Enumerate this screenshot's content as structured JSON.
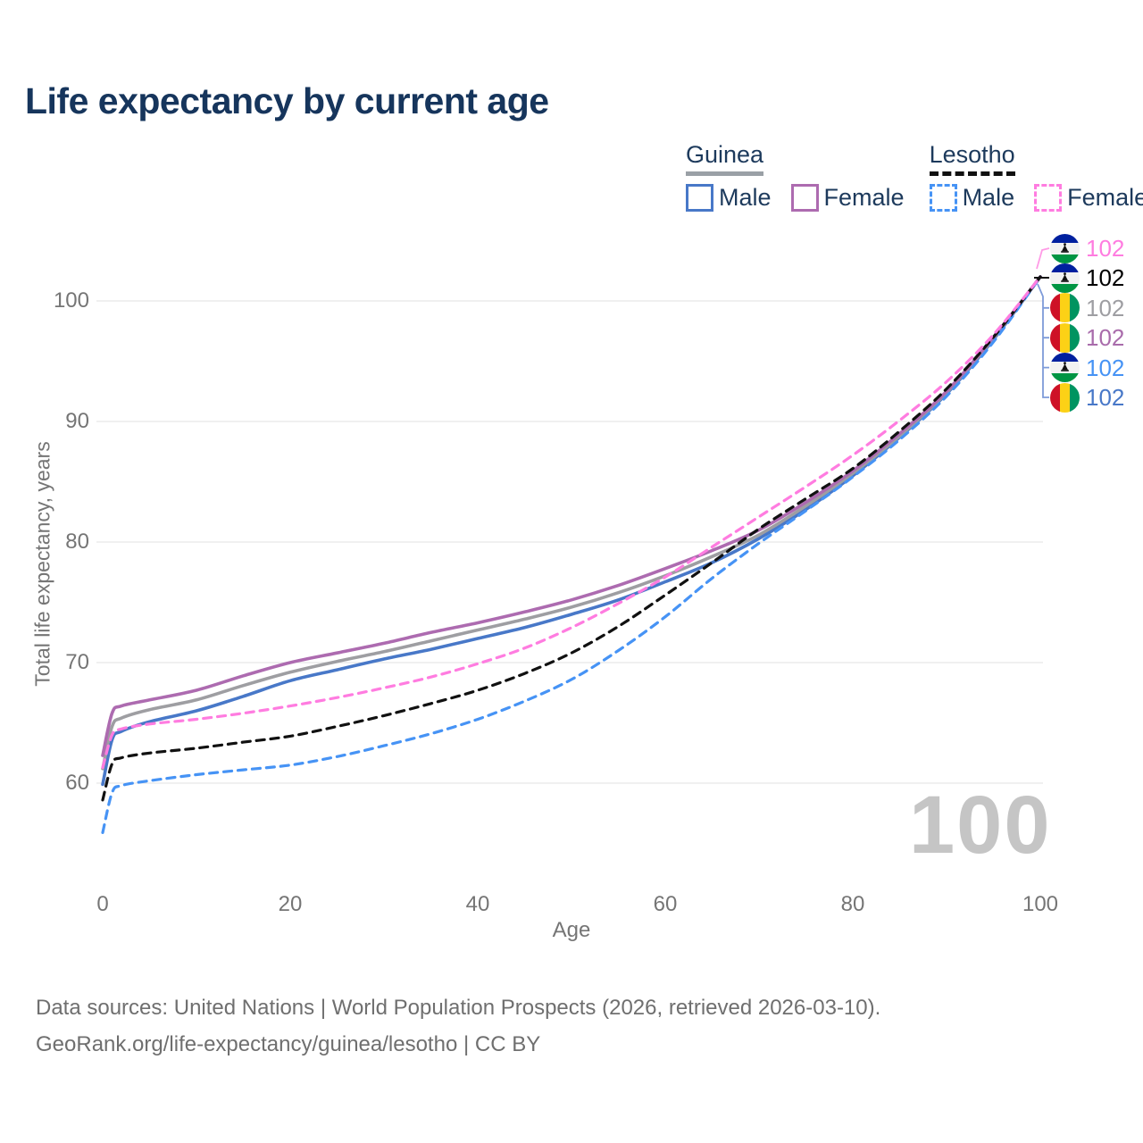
{
  "title": "Life expectancy by current age",
  "legend": {
    "groups": [
      {
        "name": "Guinea",
        "underline_style": "solid",
        "underline_color": "#9aa0a6",
        "items": [
          {
            "label": "Male",
            "color": "#4878c8",
            "dash": false
          },
          {
            "label": "Female",
            "color": "#ad6bb0",
            "dash": false
          }
        ]
      },
      {
        "name": "Lesotho",
        "underline_style": "dashed",
        "underline_color": "#111111",
        "items": [
          {
            "label": "Male",
            "color": "#4693f5",
            "dash": true
          },
          {
            "label": "Female",
            "color": "#ff7ce0",
            "dash": true
          }
        ]
      }
    ]
  },
  "chart_data": {
    "type": "line",
    "title": "Life expectancy by current age",
    "xlabel": "Age",
    "ylabel": "Total life expectancy, years",
    "xticks": [
      0,
      20,
      40,
      60,
      80,
      100
    ],
    "yticks": [
      60,
      70,
      80,
      90,
      100
    ],
    "xlim": [
      0,
      100
    ],
    "ylim": [
      55,
      104
    ],
    "grid": "horizontal-only",
    "legend_position": "top-right",
    "x": [
      0,
      1,
      2,
      5,
      10,
      15,
      20,
      25,
      30,
      35,
      40,
      45,
      50,
      55,
      60,
      65,
      70,
      75,
      80,
      85,
      90,
      95,
      100
    ],
    "series": [
      {
        "name": "Guinea Male",
        "country": "Guinea",
        "sex": "male",
        "color": "#4878c8",
        "dash": false,
        "values": [
          59.9,
          63.6,
          64.3,
          65.1,
          66.0,
          67.2,
          68.5,
          69.4,
          70.3,
          71.1,
          72.0,
          72.9,
          74.0,
          75.2,
          76.7,
          78.3,
          80.3,
          82.7,
          85.5,
          88.7,
          92.3,
          96.8,
          102
        ]
      },
      {
        "name": "Guinea Total",
        "country": "Guinea",
        "sex": "total",
        "color": "#9e9ea2",
        "dash": false,
        "values": [
          61.2,
          64.7,
          65.4,
          66.1,
          66.9,
          68.1,
          69.2,
          70.1,
          70.9,
          71.8,
          72.7,
          73.6,
          74.6,
          75.8,
          77.2,
          78.8,
          80.6,
          83.0,
          85.7,
          88.8,
          92.4,
          96.9,
          102
        ]
      },
      {
        "name": "Guinea Female",
        "country": "Guinea",
        "sex": "female",
        "color": "#ad6bb0",
        "dash": false,
        "values": [
          62.3,
          65.8,
          66.4,
          66.9,
          67.7,
          68.9,
          70.0,
          70.8,
          71.6,
          72.5,
          73.3,
          74.2,
          75.2,
          76.4,
          77.8,
          79.3,
          81.0,
          83.3,
          85.9,
          89.0,
          92.5,
          97.0,
          102
        ]
      },
      {
        "name": "Lesotho Male",
        "country": "Lesotho",
        "sex": "male",
        "color": "#4693f5",
        "dash": true,
        "values": [
          55.9,
          59.2,
          59.8,
          60.2,
          60.7,
          61.1,
          61.5,
          62.2,
          63.1,
          64.1,
          65.3,
          66.8,
          68.6,
          71.0,
          73.8,
          77.0,
          79.9,
          82.6,
          85.4,
          88.5,
          92.1,
          96.6,
          102
        ]
      },
      {
        "name": "Lesotho Total",
        "country": "Lesotho",
        "sex": "total",
        "color": "#111111",
        "dash": true,
        "values": [
          58.6,
          61.6,
          62.1,
          62.5,
          62.9,
          63.4,
          63.9,
          64.7,
          65.6,
          66.6,
          67.7,
          69.1,
          70.8,
          73.0,
          75.6,
          78.3,
          81.1,
          83.6,
          86.1,
          89.2,
          92.7,
          97.0,
          102
        ]
      },
      {
        "name": "Lesotho Female",
        "country": "Lesotho",
        "sex": "female",
        "color": "#ff7ce0",
        "dash": true,
        "values": [
          61.3,
          64.0,
          64.5,
          64.9,
          65.3,
          65.8,
          66.4,
          67.1,
          67.9,
          68.8,
          69.9,
          71.2,
          72.9,
          74.9,
          77.1,
          79.6,
          82.1,
          84.6,
          87.2,
          90.1,
          93.3,
          97.2,
          102
        ]
      }
    ],
    "end_labels": [
      {
        "flag": "lesotho",
        "value": "102",
        "color": "#ff7ce0",
        "series": "Lesotho Female"
      },
      {
        "flag": "lesotho",
        "value": "102",
        "color": "#000000",
        "series": "Lesotho Total"
      },
      {
        "flag": "guinea",
        "value": "102",
        "color": "#9e9ea2",
        "series": "Guinea Total"
      },
      {
        "flag": "guinea",
        "value": "102",
        "color": "#a96cab",
        "series": "Guinea Female"
      },
      {
        "flag": "lesotho",
        "value": "102",
        "color": "#4693f5",
        "series": "Lesotho Male"
      },
      {
        "flag": "guinea",
        "value": "102",
        "color": "#4878c8",
        "series": "Guinea Male"
      }
    ]
  },
  "watermark": "100",
  "footer": {
    "line1": "Data sources: United Nations | World Population Prospects (2026, retrieved 2026-03-10).",
    "line2": "GeoRank.org/life-expectancy/guinea/lesotho | CC BY"
  },
  "flag_colors": {
    "guinea": {
      "red": "#ce1126",
      "yellow": "#fcd116",
      "green": "#009460"
    },
    "lesotho": {
      "blue": "#00209f",
      "white": "#ffffff",
      "green": "#009543",
      "hat": "#111111"
    }
  }
}
